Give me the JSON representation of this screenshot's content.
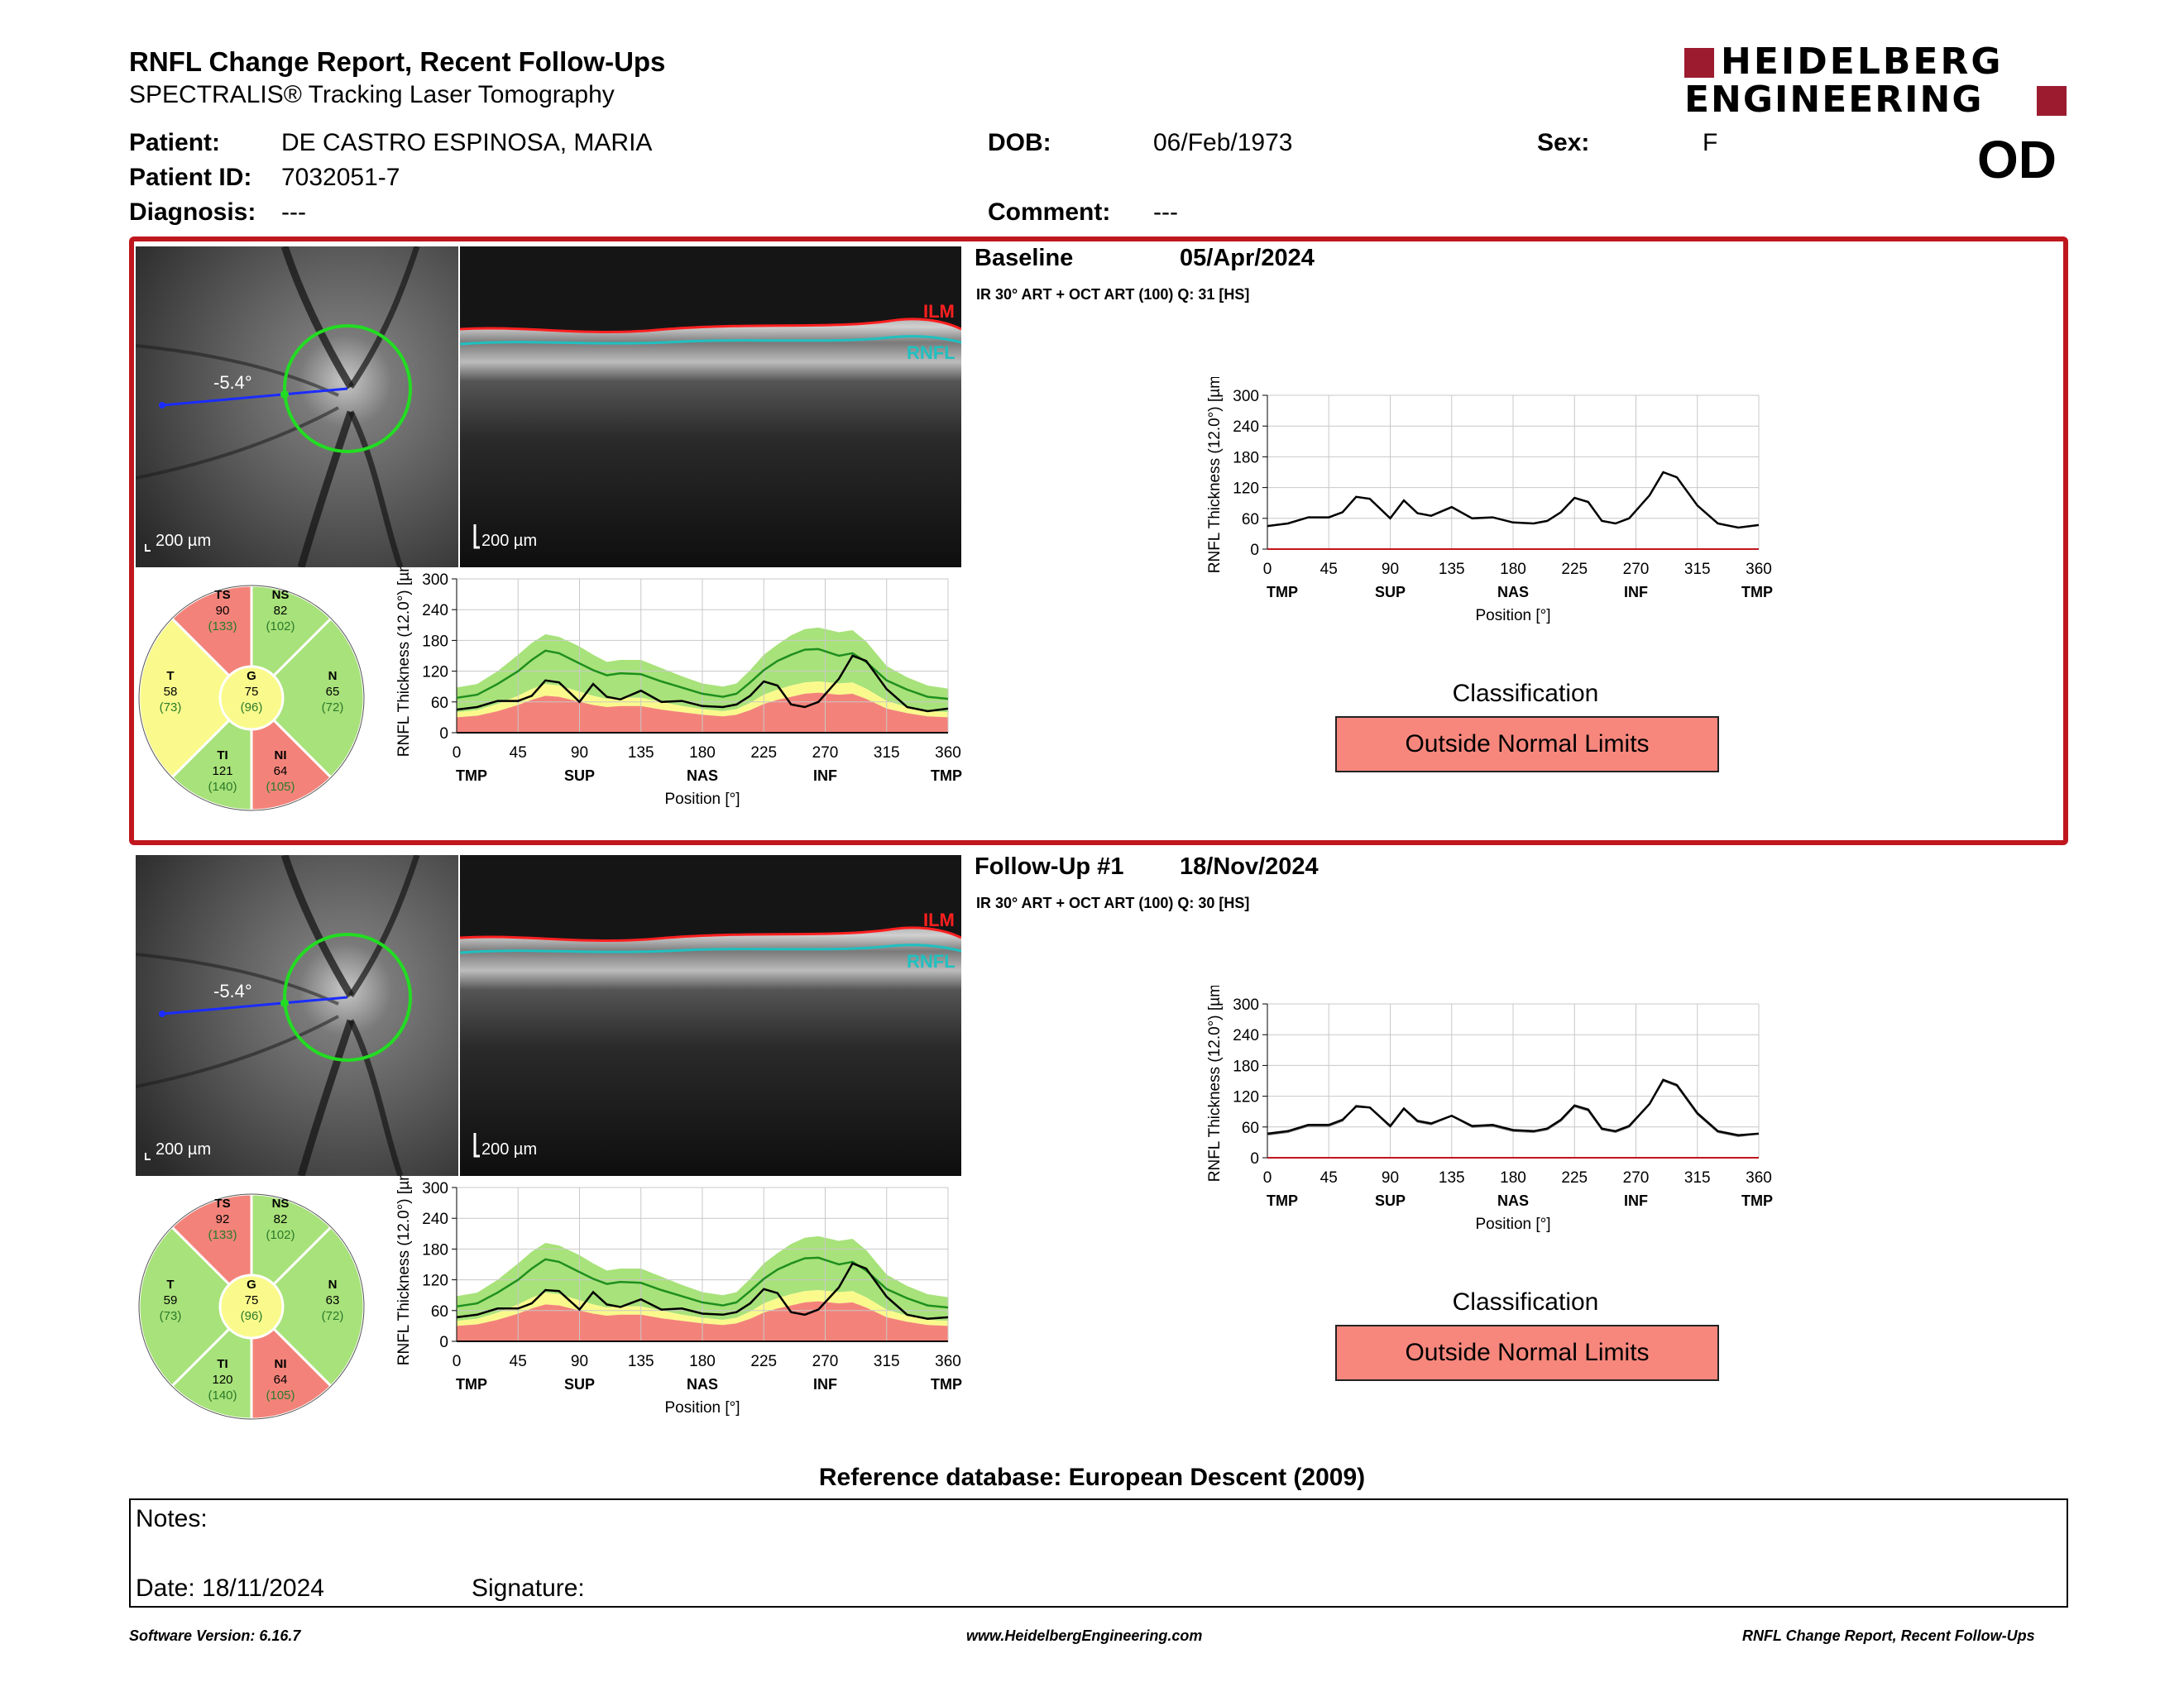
{
  "header": {
    "title": "RNFL Change Report, Recent Follow-Ups",
    "subtitle": "SPECTRALIS® Tracking Laser Tomography",
    "logo_line1": "HEIDELBERG",
    "logo_line2": "ENGINEERING",
    "eye": "OD"
  },
  "patient": {
    "patient_label": "Patient:",
    "patient_value": "DE CASTRO ESPINOSA, MARIA",
    "id_label": "Patient ID:",
    "id_value": "7032051-7",
    "diagnosis_label": "Diagnosis:",
    "diagnosis_value": "---",
    "dob_label": "DOB:",
    "dob_value": "06/Feb/1973",
    "comment_label": "Comment:",
    "comment_value": "---",
    "sex_label": "Sex:",
    "sex_value": "F"
  },
  "common": {
    "scale_label": "200 µm",
    "angle_label": "-5.4°",
    "ilm_label": "ILM",
    "rnfl_label": "RNFL",
    "ylabel": "RNFL Thickness (12.0°) [µm]",
    "xlabel": "Position [°]",
    "classification_title": "Classification",
    "colors": {
      "frame": "#c0161e",
      "red": "#f3837a",
      "yellow": "#fafa8c",
      "green": "#a8e27a",
      "brand": "#9c1b2f"
    }
  },
  "exams": [
    {
      "label": "Baseline",
      "date": "05/Apr/2024",
      "scan_info": "IR 30° ART + OCT ART (100) Q: 31 [HS]",
      "classification": "Outside Normal Limits",
      "sectors": {
        "TS": {
          "label": "TS",
          "value": "90",
          "ref": "(133)"
        },
        "NS": {
          "label": "NS",
          "value": "82",
          "ref": "(102)"
        },
        "T": {
          "label": "T",
          "value": "58",
          "ref": "(73)"
        },
        "G": {
          "label": "G",
          "value": "75",
          "ref": "(96)"
        },
        "N": {
          "label": "N",
          "value": "65",
          "ref": "(72)"
        },
        "TI": {
          "label": "TI",
          "value": "121",
          "ref": "(140)"
        },
        "NI": {
          "label": "NI",
          "value": "64",
          "ref": "(105)"
        }
      }
    },
    {
      "label": "Follow-Up #1",
      "date": "18/Nov/2024",
      "scan_info": "IR 30° ART + OCT ART (100) Q: 30 [HS]",
      "classification": "Outside Normal Limits",
      "sectors": {
        "TS": {
          "label": "TS",
          "value": "92",
          "ref": "(133)"
        },
        "NS": {
          "label": "NS",
          "value": "82",
          "ref": "(102)"
        },
        "T": {
          "label": "T",
          "value": "59",
          "ref": "(73)"
        },
        "G": {
          "label": "G",
          "value": "75",
          "ref": "(96)"
        },
        "N": {
          "label": "N",
          "value": "63",
          "ref": "(72)"
        },
        "TI": {
          "label": "TI",
          "value": "120",
          "ref": "(140)"
        },
        "NI": {
          "label": "NI",
          "value": "64",
          "ref": "(105)"
        }
      }
    }
  ],
  "chart_data": [
    {
      "type": "line",
      "title": "",
      "xlabel": "Position [°]",
      "ylabel": "RNFL Thickness (12.0°) [µm]",
      "xlim": [
        0,
        360
      ],
      "ylim": [
        0,
        300
      ],
      "x_ticks": [
        0,
        45,
        90,
        135,
        180,
        225,
        270,
        315,
        360
      ],
      "y_ticks": [
        0,
        60,
        120,
        180,
        240,
        300
      ],
      "sector_labels": [
        "TMP",
        "SUP",
        "NAS",
        "INF",
        "TMP"
      ],
      "sector_positions": [
        0,
        90,
        180,
        270,
        360
      ],
      "x": [
        0,
        15,
        30,
        45,
        55,
        65,
        75,
        90,
        100,
        110,
        120,
        135,
        150,
        165,
        180,
        195,
        205,
        215,
        225,
        235,
        245,
        255,
        265,
        280,
        290,
        300,
        315,
        330,
        345,
        360
      ],
      "series": [
        {
          "values": [
            45,
            50,
            62,
            62,
            72,
            102,
            98,
            60,
            95,
            70,
            65,
            82,
            60,
            62,
            52,
            50,
            55,
            72,
            100,
            92,
            55,
            50,
            60,
            105,
            150,
            140,
            85,
            50,
            42,
            47
          ]
        }
      ],
      "normative_bands": {
        "upper_green": [
          88,
          95,
          120,
          152,
          175,
          192,
          187,
          168,
          152,
          138,
          142,
          142,
          126,
          110,
          96,
          90,
          96,
          122,
          152,
          172,
          190,
          202,
          205,
          196,
          200,
          178,
          130,
          108,
          92,
          86
        ],
        "mean": [
          68,
          74,
          95,
          120,
          142,
          160,
          155,
          135,
          122,
          112,
          116,
          114,
          100,
          88,
          76,
          70,
          76,
          98,
          122,
          140,
          152,
          162,
          163,
          150,
          155,
          138,
          102,
          84,
          70,
          66
        ],
        "lower_yellow": [
          40,
          44,
          56,
          72,
          85,
          95,
          92,
          80,
          72,
          66,
          68,
          68,
          60,
          52,
          46,
          42,
          46,
          58,
          74,
          84,
          92,
          98,
          100,
          96,
          98,
          86,
          62,
          50,
          42,
          40
        ],
        "lower_red": [
          30,
          33,
          42,
          54,
          64,
          72,
          70,
          60,
          54,
          50,
          52,
          52,
          45,
          40,
          35,
          32,
          35,
          44,
          56,
          64,
          70,
          76,
          78,
          74,
          76,
          66,
          47,
          38,
          32,
          30
        ]
      }
    },
    {
      "type": "line",
      "title": "",
      "xlabel": "Position [°]",
      "ylabel": "RNFL Thickness (12.0°) [µm]",
      "xlim": [
        0,
        360
      ],
      "ylim": [
        0,
        300
      ],
      "x_ticks": [
        0,
        45,
        90,
        135,
        180,
        225,
        270,
        315,
        360
      ],
      "y_ticks": [
        0,
        60,
        120,
        180,
        240,
        300
      ],
      "sector_labels": [
        "TMP",
        "SUP",
        "NAS",
        "INF",
        "TMP"
      ],
      "sector_positions": [
        0,
        90,
        180,
        270,
        360
      ],
      "x": [
        0,
        15,
        30,
        45,
        55,
        65,
        75,
        90,
        100,
        110,
        120,
        135,
        150,
        165,
        180,
        195,
        205,
        215,
        225,
        235,
        245,
        255,
        265,
        280,
        290,
        300,
        315,
        330,
        345,
        360
      ],
      "series": [
        {
          "values": [
            47,
            52,
            64,
            64,
            74,
            100,
            98,
            62,
            96,
            72,
            67,
            82,
            62,
            64,
            54,
            52,
            57,
            74,
            102,
            94,
            57,
            52,
            62,
            105,
            152,
            142,
            87,
            52,
            44,
            47
          ]
        }
      ],
      "normative_bands": {
        "upper_green": [
          88,
          95,
          120,
          152,
          175,
          192,
          187,
          168,
          152,
          138,
          142,
          142,
          126,
          110,
          96,
          90,
          96,
          122,
          152,
          172,
          190,
          202,
          205,
          196,
          200,
          178,
          130,
          108,
          92,
          86
        ],
        "mean": [
          68,
          74,
          95,
          120,
          142,
          160,
          155,
          135,
          122,
          112,
          116,
          114,
          100,
          88,
          76,
          70,
          76,
          98,
          122,
          140,
          152,
          162,
          163,
          150,
          155,
          138,
          102,
          84,
          70,
          66
        ],
        "lower_yellow": [
          40,
          44,
          56,
          72,
          85,
          95,
          92,
          80,
          72,
          66,
          68,
          68,
          60,
          52,
          46,
          42,
          46,
          58,
          74,
          84,
          92,
          98,
          100,
          96,
          98,
          86,
          62,
          50,
          42,
          40
        ],
        "lower_red": [
          30,
          33,
          42,
          54,
          64,
          72,
          70,
          60,
          54,
          50,
          52,
          52,
          45,
          40,
          35,
          32,
          35,
          44,
          56,
          64,
          70,
          76,
          78,
          74,
          76,
          66,
          47,
          38,
          32,
          30
        ]
      }
    },
    {
      "type": "line",
      "title": "",
      "xlabel": "Position [°]",
      "ylabel": "RNFL Thickness (12.0°) [µm]",
      "xlim": [
        0,
        360
      ],
      "ylim": [
        0,
        300
      ],
      "x_ticks": [
        0,
        45,
        90,
        135,
        180,
        225,
        270,
        315,
        360
      ],
      "y_ticks": [
        0,
        60,
        120,
        180,
        240,
        300
      ],
      "sector_labels": [
        "TMP",
        "SUP",
        "NAS",
        "INF",
        "TMP"
      ],
      "sector_positions": [
        0,
        90,
        180,
        270,
        360
      ],
      "x": [
        0,
        15,
        30,
        45,
        55,
        65,
        75,
        90,
        100,
        110,
        120,
        135,
        150,
        165,
        180,
        195,
        205,
        215,
        225,
        235,
        245,
        255,
        265,
        280,
        290,
        300,
        315,
        330,
        345,
        360
      ],
      "series": [
        {
          "values": [
            45,
            50,
            62,
            62,
            72,
            102,
            98,
            60,
            95,
            70,
            65,
            82,
            60,
            62,
            52,
            50,
            55,
            72,
            100,
            92,
            55,
            50,
            60,
            105,
            150,
            140,
            85,
            50,
            42,
            47
          ]
        }
      ]
    },
    {
      "type": "line",
      "title": "",
      "xlabel": "Position [°]",
      "ylabel": "RNFL Thickness (12.0°) [µm]",
      "xlim": [
        0,
        360
      ],
      "ylim": [
        0,
        300
      ],
      "x_ticks": [
        0,
        45,
        90,
        135,
        180,
        225,
        270,
        315,
        360
      ],
      "y_ticks": [
        0,
        60,
        120,
        180,
        240,
        300
      ],
      "sector_labels": [
        "TMP",
        "SUP",
        "NAS",
        "INF",
        "TMP"
      ],
      "sector_positions": [
        0,
        90,
        180,
        270,
        360
      ],
      "x": [
        0,
        15,
        30,
        45,
        55,
        65,
        75,
        90,
        100,
        110,
        120,
        135,
        150,
        165,
        180,
        195,
        205,
        215,
        225,
        235,
        245,
        255,
        265,
        280,
        290,
        300,
        315,
        330,
        345,
        360
      ],
      "series": [
        {
          "values": [
            45,
            50,
            62,
            62,
            72,
            102,
            98,
            60,
            95,
            70,
            65,
            82,
            60,
            62,
            52,
            50,
            55,
            72,
            100,
            92,
            55,
            50,
            60,
            105,
            150,
            140,
            85,
            50,
            42,
            47
          ]
        },
        {
          "values": [
            47,
            52,
            64,
            64,
            74,
            100,
            98,
            62,
            96,
            72,
            67,
            82,
            62,
            64,
            54,
            52,
            57,
            74,
            102,
            94,
            57,
            52,
            62,
            105,
            152,
            142,
            87,
            52,
            44,
            47
          ]
        }
      ]
    }
  ],
  "footer": {
    "reference_db": "Reference database: European Descent (2009)",
    "notes_label": "Notes:",
    "date_label": "Date: 18/11/2024",
    "signature_label": "Signature:",
    "software": "Software Version: 6.16.7",
    "website": "www.HeidelbergEngineering.com",
    "report_name": "RNFL Change Report, Recent Follow-Ups"
  }
}
